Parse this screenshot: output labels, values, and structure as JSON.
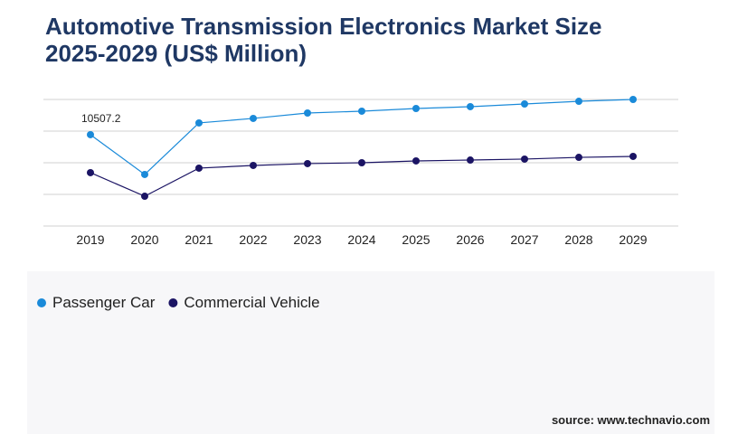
{
  "chart_data": {
    "type": "line",
    "title": "Automotive Transmission Electronics Market Size",
    "subtitle": "2025-2029 (US$ Million)",
    "categories": [
      "2019",
      "2020",
      "2021",
      "2022",
      "2023",
      "2024",
      "2025",
      "2026",
      "2027",
      "2028",
      "2029"
    ],
    "series": [
      {
        "name": "Passenger Car",
        "color": "#1a8ad9",
        "values": [
          10507.2,
          5930,
          11860,
          12380,
          13000,
          13210,
          13520,
          13730,
          14040,
          14350,
          14560
        ],
        "value_labels": [
          "10507.2",
          null,
          null,
          null,
          null,
          null,
          null,
          null,
          null,
          null,
          null
        ]
      },
      {
        "name": "Commercial Vehicle",
        "color": "#1b1464",
        "values": [
          6140,
          3430,
          6660,
          6970,
          7180,
          7280,
          7490,
          7590,
          7700,
          7900,
          8010
        ]
      }
    ],
    "ylim": [
      0,
      14560
    ],
    "grid": true,
    "source": "source: www.technavio.com"
  }
}
